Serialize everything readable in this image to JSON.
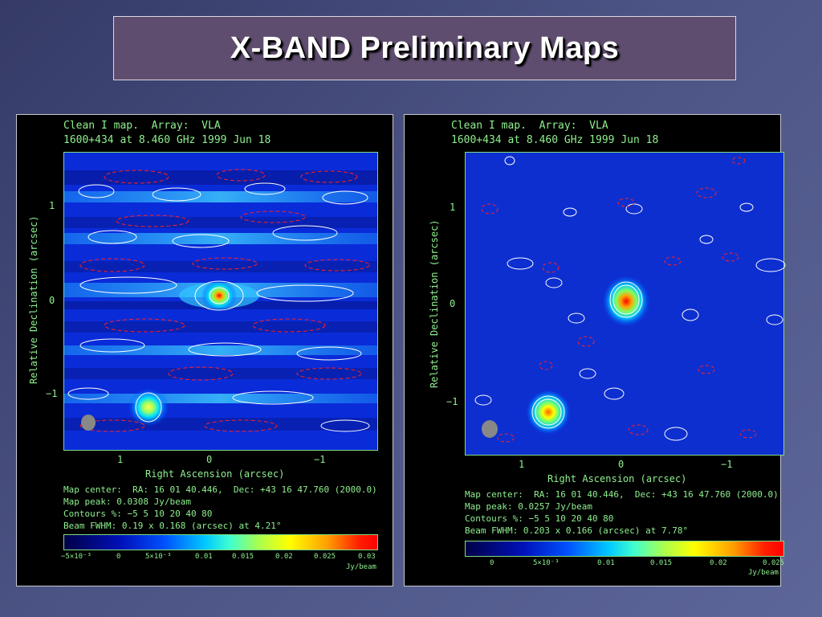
{
  "slide": {
    "title": "X-BAND Preliminary Maps"
  },
  "panels": [
    {
      "header_line1": "Clean I map.  Array:  VLA",
      "header_line2": "1600+434 at 8.460 GHz 1999 Jun 18",
      "y_axis_title": "Relative Declination  (arcsec)",
      "x_axis_title": "Right Ascension  (arcsec)",
      "y_ticks": [
        "1",
        "0",
        "−1"
      ],
      "x_ticks": [
        "1",
        "0",
        "−1"
      ],
      "info_lines": [
        "Map center:  RA: 16 01 40.446,  Dec: +43 16 47.760 (2000.0)",
        "Map peak: 0.0308 Jy/beam",
        "Contours %: −5 5 10 20 40 80",
        "Beam FWHM: 0.19 x 0.168 (arcsec) at 4.21°"
      ],
      "colorbar_ticks": [
        "−5×10⁻³",
        "0",
        "5×10⁻³",
        "0.01",
        "0.015",
        "0.02",
        "0.025",
        "0.03"
      ],
      "colorbar_unit": "Jy/beam"
    },
    {
      "header_line1": "Clean I map.  Array:  VLA",
      "header_line2": "1600+434 at 8.460 GHz 1999 Jun 18",
      "y_axis_title": "Relative Declination  (arcsec)",
      "x_axis_title": "Right Ascension  (arcsec)",
      "y_ticks": [
        "1",
        "0",
        "−1"
      ],
      "x_ticks": [
        "1",
        "0",
        "−1"
      ],
      "info_lines": [
        "Map center:  RA: 16 01 40.446,  Dec: +43 16 47.760 (2000.0)",
        "Map peak: 0.0257 Jy/beam",
        "Contours %: −5 5 10 20 40 80",
        "Beam FWHM: 0.203 x 0.166 (arcsec) at 7.78°"
      ],
      "colorbar_ticks": [
        "0",
        "5×10⁻³",
        "0.01",
        "0.015",
        "0.02",
        "0.025"
      ],
      "colorbar_unit": "Jy/beam"
    }
  ],
  "colors": {
    "axis_green": "#8ff08f",
    "title_bar": "#5f4d6f",
    "contour_positive": "#ffffff",
    "contour_negative": "#ff2020"
  }
}
